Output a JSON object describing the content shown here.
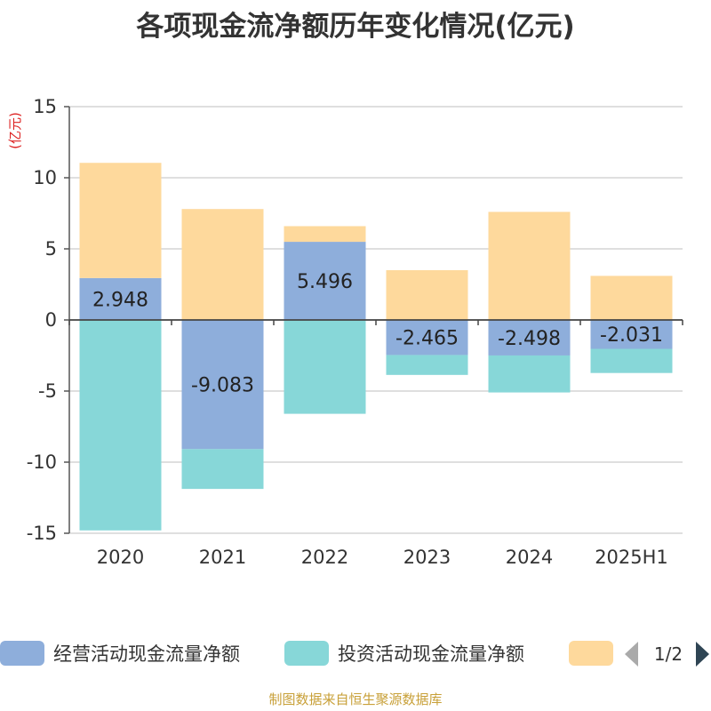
{
  "title": "各项现金流净额历年变化情况(亿元)",
  "source_text": "制图数据来自恒生聚源数据库",
  "legend_page": "1/2",
  "chart_data": {
    "type": "bar",
    "stacked": true,
    "ylabel": "(亿元)",
    "ylim": [
      -15,
      15
    ],
    "yticks": [
      15,
      10,
      5,
      0,
      -5,
      -10,
      -15
    ],
    "ytick_labels": [
      "15",
      "10",
      "5",
      "0",
      "-5",
      "-10",
      "-15"
    ],
    "categories": [
      "2020",
      "2021",
      "2022",
      "2023",
      "2024",
      "2025H1"
    ],
    "grid": true,
    "legend_position": "bottom",
    "series": [
      {
        "name": "经营活动现金流量净额",
        "color": "#8eaedb",
        "values": [
          2.948,
          -9.083,
          5.496,
          -2.465,
          -2.498,
          -2.031
        ],
        "labels": [
          "2.948",
          "-9.083",
          "5.496",
          "-2.465",
          "-2.498",
          "-2.031"
        ]
      },
      {
        "name": "投资活动现金流量净额",
        "color": "#87d7d8",
        "values": [
          -14.8,
          -2.8,
          -6.6,
          -1.4,
          -2.6,
          -1.7
        ]
      },
      {
        "name": "",
        "color": "#fed99c",
        "values": [
          8.1,
          7.8,
          1.1,
          3.5,
          7.6,
          3.1
        ]
      }
    ]
  }
}
